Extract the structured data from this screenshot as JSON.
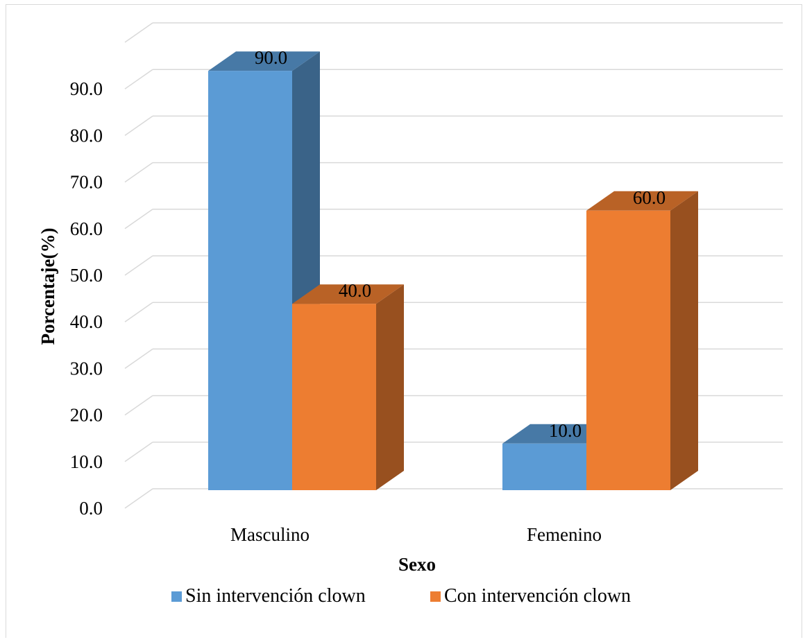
{
  "chart_data": {
    "type": "bar",
    "categories": [
      "Masculino",
      "Femenino"
    ],
    "series": [
      {
        "name": "Sin intervención clown",
        "values": [
          90.0,
          10.0
        ],
        "value_labels": [
          "90.0",
          "10.0"
        ],
        "color": "#5b9bd5"
      },
      {
        "name": "Con intervención clown",
        "values": [
          40.0,
          60.0
        ],
        "value_labels": [
          "40.0",
          "60.0"
        ],
        "color": "#ed7d31"
      }
    ],
    "xlabel": "Sexo",
    "ylabel": "Porcentaje(%)",
    "ylim": [
      0,
      90
    ],
    "yticks": [
      0,
      10,
      20,
      30,
      40,
      50,
      60,
      70,
      80,
      90
    ],
    "ytick_labels": [
      "0.0",
      "10.0",
      "20.0",
      "30.0",
      "40.0",
      "50.0",
      "60.0",
      "70.0",
      "80.0",
      "90.0"
    ],
    "grid": true,
    "legend_position": "bottom",
    "style": "3d-clustered-column"
  }
}
